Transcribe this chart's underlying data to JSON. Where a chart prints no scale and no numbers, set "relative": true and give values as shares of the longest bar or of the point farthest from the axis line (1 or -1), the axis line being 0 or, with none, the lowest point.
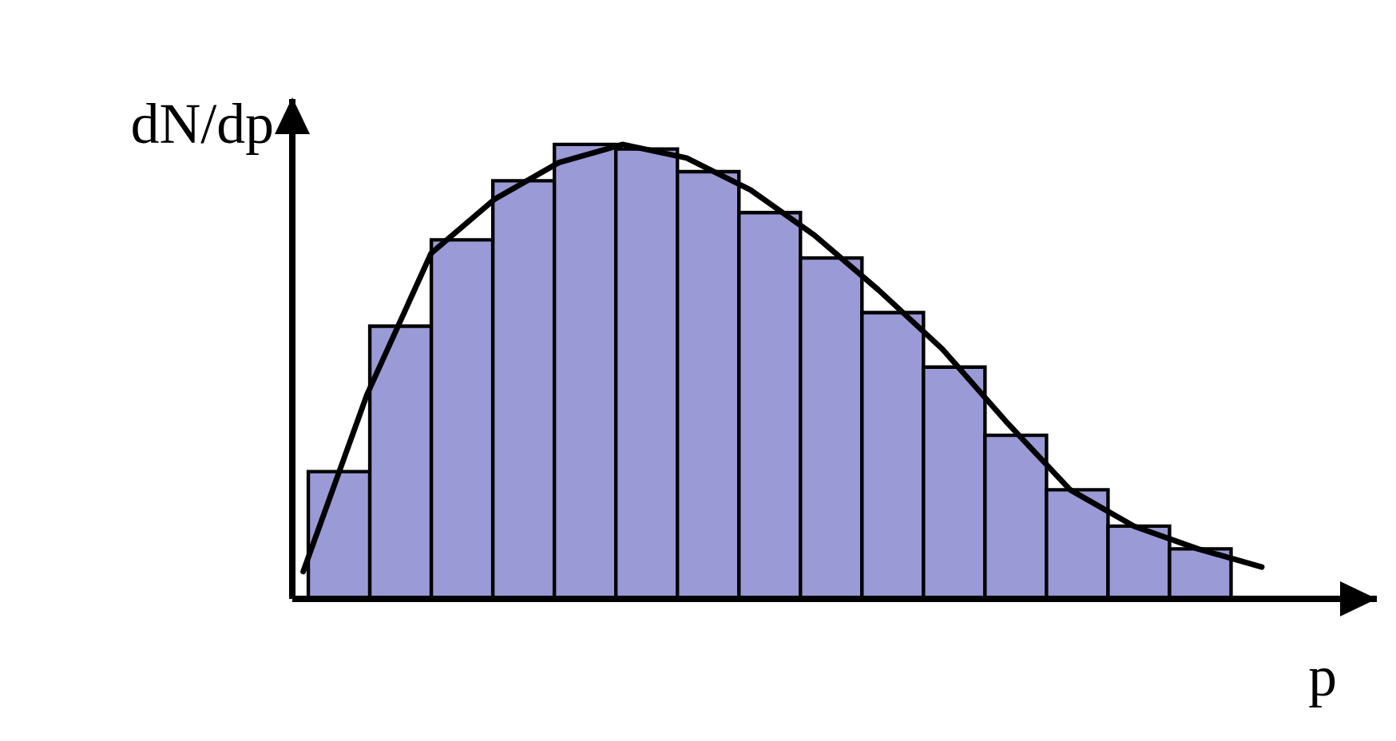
{
  "chart_data": [
    {
      "type": "bar",
      "xlabel": "p",
      "ylabel": "dN/dp",
      "relative": true,
      "color": "#9a9ad6",
      "categories": [
        null,
        null,
        null,
        null,
        null,
        null,
        null,
        null,
        null,
        null,
        null,
        null,
        null,
        null,
        null
      ],
      "values": [
        0.28,
        0.6,
        0.79,
        0.92,
        1.0,
        0.99,
        0.94,
        0.85,
        0.75,
        0.63,
        0.51,
        0.36,
        0.24,
        0.16,
        0.11
      ]
    },
    {
      "type": "line",
      "relative": true,
      "color": "#000000",
      "categories": [
        null,
        null,
        null,
        null,
        null,
        null,
        null,
        null,
        null,
        null,
        null,
        null,
        null,
        null,
        null,
        null
      ],
      "values": [
        0.06,
        0.45,
        0.76,
        0.88,
        0.96,
        1.0,
        0.97,
        0.9,
        0.8,
        0.68,
        0.55,
        0.39,
        0.24,
        0.16,
        0.11,
        0.07
      ]
    }
  ]
}
